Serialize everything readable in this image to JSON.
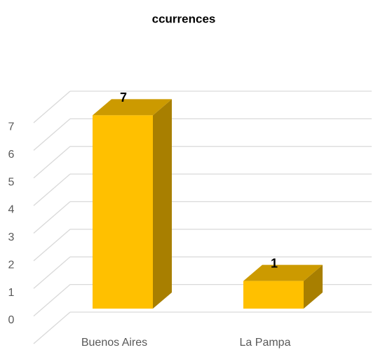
{
  "chart_data": {
    "type": "bar3d",
    "title": "ccurrences",
    "categories": [
      "Buenos Aires",
      "La Pampa"
    ],
    "values": [
      7,
      1
    ],
    "color": "#ffc000",
    "ylim": [
      0,
      8
    ],
    "yticks": [
      0,
      1,
      2,
      3,
      4,
      5,
      6,
      7
    ],
    "grid": true
  }
}
